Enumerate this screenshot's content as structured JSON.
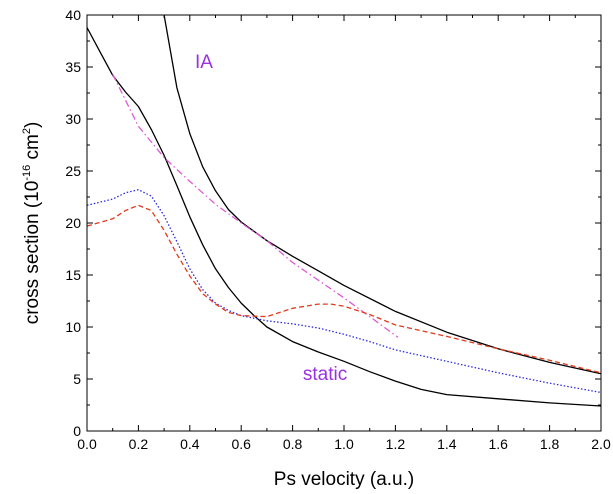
{
  "chart_data": {
    "type": "line",
    "title": "",
    "xlabel": "Ps velocity (a.u.)",
    "ylabel": "cross section (10^-16 cm^2)",
    "ylabel_parts": {
      "pre": "cross section (10",
      "exp1": "-16",
      "mid": " cm",
      "exp2": "2",
      "post": ")"
    },
    "xlim": [
      0.0,
      2.0
    ],
    "ylim": [
      0,
      40
    ],
    "x_ticks": [
      0.0,
      0.2,
      0.4,
      0.6,
      0.8,
      1.0,
      1.2,
      1.4,
      1.6,
      1.8,
      2.0
    ],
    "x_tick_labels": [
      "0.0",
      "0.2",
      "0.4",
      "0.6",
      "0.8",
      "1.0",
      "1.2",
      "1.4",
      "1.6",
      "1.8",
      "2.0"
    ],
    "y_ticks": [
      0,
      5,
      10,
      15,
      20,
      25,
      30,
      35,
      40
    ],
    "y_tick_labels": [
      "0",
      "5",
      "10",
      "15",
      "20",
      "25",
      "30",
      "35",
      "40"
    ],
    "grid": false,
    "legend": "none",
    "annotations": [
      {
        "text": "IA",
        "x": 0.42,
        "y": 34.9,
        "color": "#9a30e0"
      },
      {
        "text": "static",
        "x": 0.84,
        "y": 4.9,
        "color": "#9a30e0"
      }
    ],
    "series": [
      {
        "color": "#000000",
        "style": "solid",
        "x": [
          0.0,
          0.05,
          0.1,
          0.15,
          0.2,
          0.25,
          0.3,
          0.35,
          0.4,
          0.45,
          0.5,
          0.55,
          0.6,
          0.65,
          0.7,
          0.8,
          0.9,
          1.0,
          1.1,
          1.2,
          1.3,
          1.4,
          1.6,
          1.8,
          2.0
        ],
        "y": [
          38.8,
          36.5,
          34.2,
          32.6,
          31.2,
          29.0,
          26.5,
          23.6,
          20.6,
          17.9,
          15.6,
          13.8,
          12.3,
          11.1,
          10.0,
          8.6,
          7.6,
          6.7,
          5.7,
          4.8,
          4.0,
          3.5,
          3.1,
          2.7,
          2.4
        ]
      },
      {
        "color": "#000000",
        "style": "solid",
        "x": [
          0.3,
          0.35,
          0.4,
          0.45,
          0.5,
          0.55,
          0.6,
          0.7,
          0.8,
          0.9,
          1.0,
          1.2,
          1.4,
          1.6,
          1.8,
          2.0
        ],
        "y": [
          40.0,
          33.0,
          28.6,
          25.4,
          23.1,
          21.3,
          20.1,
          18.3,
          16.8,
          15.4,
          14.0,
          11.5,
          9.5,
          7.9,
          6.6,
          5.5
        ]
      },
      {
        "color": "#e05ad6",
        "style": "dashdot",
        "x": [
          0.1,
          0.2,
          0.3,
          0.4,
          0.5,
          0.6,
          0.7,
          0.8,
          0.9,
          1.0,
          1.1,
          1.21
        ],
        "y": [
          34.3,
          29.3,
          26.3,
          24.0,
          21.8,
          20.0,
          18.3,
          16.2,
          14.5,
          12.8,
          11.0,
          9.0
        ]
      },
      {
        "color": "#2a2adf",
        "style": "dotted",
        "x": [
          0.0,
          0.1,
          0.15,
          0.2,
          0.25,
          0.3,
          0.35,
          0.4,
          0.45,
          0.5,
          0.55,
          0.6,
          0.7,
          0.8,
          0.9,
          1.0,
          1.1,
          1.2,
          1.4,
          1.6,
          1.8,
          2.0
        ],
        "y": [
          21.7,
          22.3,
          22.9,
          23.2,
          22.6,
          20.7,
          18.2,
          15.6,
          13.6,
          12.3,
          11.6,
          11.1,
          10.6,
          10.3,
          9.9,
          9.3,
          8.6,
          7.8,
          6.7,
          5.6,
          4.6,
          3.7
        ]
      },
      {
        "color": "#e03a1e",
        "style": "dashed",
        "x": [
          0.0,
          0.1,
          0.15,
          0.2,
          0.25,
          0.3,
          0.35,
          0.4,
          0.45,
          0.5,
          0.55,
          0.6,
          0.7,
          0.8,
          0.9,
          0.95,
          1.0,
          1.1,
          1.2,
          1.4,
          1.6,
          1.8,
          2.0
        ],
        "y": [
          19.7,
          20.4,
          21.2,
          21.7,
          21.2,
          19.3,
          17.0,
          14.9,
          13.2,
          12.2,
          11.4,
          11.1,
          11.0,
          11.8,
          12.2,
          12.2,
          12.0,
          11.2,
          10.2,
          9.1,
          7.9,
          6.8,
          5.6
        ]
      }
    ]
  }
}
